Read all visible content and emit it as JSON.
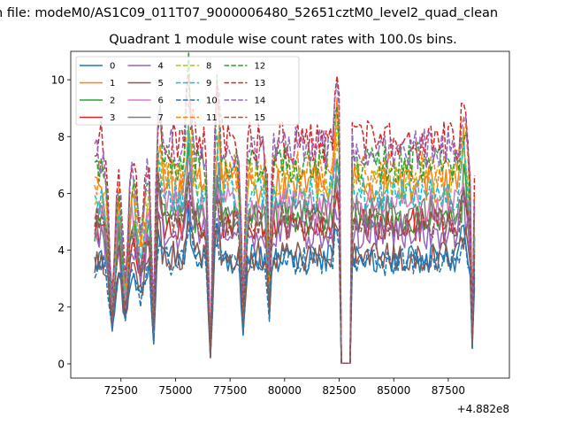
{
  "suptitle": "n file: modeM0/AS1C09_011T07_9000006480_52651cztM0_level2_quad_clean",
  "chart_data": {
    "type": "line",
    "title": "Quadrant 1 module wise count rates with 100.0s bins.",
    "xlabel": "",
    "ylabel": "",
    "x_offset_label": "+4.882e8",
    "xlim": [
      70200,
      90300
    ],
    "ylim": [
      -0.5,
      11.0
    ],
    "xticks": [
      72500,
      75000,
      77500,
      80000,
      82500,
      85000,
      87500
    ],
    "xtick_labels": [
      "72500",
      "75000",
      "77500",
      "80000",
      "82500",
      "85000",
      "87500"
    ],
    "yticks": [
      0,
      2,
      4,
      6,
      8,
      10
    ],
    "ytick_labels": [
      "0",
      "2",
      "4",
      "6",
      "8",
      "10"
    ],
    "grid": false,
    "legend_position": "upper-left",
    "legend_columns": 4,
    "x_segments": [
      [
        71300,
        82500
      ],
      [
        82600,
        83000
      ],
      [
        83100,
        88700
      ]
    ],
    "dips": [
      {
        "x": 72100,
        "depth": 0.65,
        "width": 200
      },
      {
        "x": 72700,
        "depth": 0.6,
        "width": 200
      },
      {
        "x": 73400,
        "depth": 0.35,
        "width": 250
      },
      {
        "x": 74000,
        "depth": 0.82,
        "width": 130
      },
      {
        "x": 76600,
        "depth": 0.95,
        "width": 120
      },
      {
        "x": 78100,
        "depth": 0.7,
        "width": 120
      },
      {
        "x": 79300,
        "depth": 0.55,
        "width": 100
      },
      {
        "x": 88600,
        "depth": 0.85,
        "width": 80
      }
    ],
    "spikes": [
      {
        "x": 74200,
        "amp": 1.6
      },
      {
        "x": 75600,
        "amp": 2.0
      },
      {
        "x": 76900,
        "amp": 1.5
      },
      {
        "x": 82400,
        "amp": 1.6
      },
      {
        "x": 88200,
        "amp": 1.3
      }
    ],
    "series": [
      {
        "name": "0",
        "color": "#1f77b4",
        "dash": false,
        "level": 3.7,
        "start": 3.6
      },
      {
        "name": "1",
        "color": "#ff7f0e",
        "dash": false,
        "level": 6.3,
        "start": 6.0
      },
      {
        "name": "2",
        "color": "#2ca02c",
        "dash": false,
        "level": 5.1,
        "start": 4.8
      },
      {
        "name": "3",
        "color": "#d62728",
        "dash": false,
        "level": 4.9,
        "start": 4.6
      },
      {
        "name": "4",
        "color": "#9467bd",
        "dash": false,
        "level": 4.6,
        "start": 4.4
      },
      {
        "name": "5",
        "color": "#8c564b",
        "dash": false,
        "level": 3.8,
        "start": 3.7
      },
      {
        "name": "6",
        "color": "#e377c2",
        "dash": false,
        "level": 5.6,
        "start": 5.3
      },
      {
        "name": "7",
        "color": "#7f7f7f",
        "dash": false,
        "level": 5.3,
        "start": 5.0
      },
      {
        "name": "8",
        "color": "#bcbd22",
        "dash": true,
        "level": 6.5,
        "start": 6.2
      },
      {
        "name": "9",
        "color": "#17becf",
        "dash": true,
        "level": 6.0,
        "start": 5.8
      },
      {
        "name": "10",
        "color": "#1f77b4",
        "dash": true,
        "level": 3.6,
        "start": 3.5
      },
      {
        "name": "11",
        "color": "#ff7f0e",
        "dash": true,
        "level": 6.8,
        "start": 6.5
      },
      {
        "name": "12",
        "color": "#2ca02c",
        "dash": true,
        "level": 7.1,
        "start": 7.0
      },
      {
        "name": "13",
        "color": "#d62728",
        "dash": true,
        "level": 7.8,
        "start": 7.9
      },
      {
        "name": "14",
        "color": "#9467bd",
        "dash": true,
        "level": 7.6,
        "start": 7.3
      },
      {
        "name": "15",
        "color": "#8c564b",
        "dash": true,
        "level": 5.0,
        "start": 5.2
      }
    ]
  }
}
